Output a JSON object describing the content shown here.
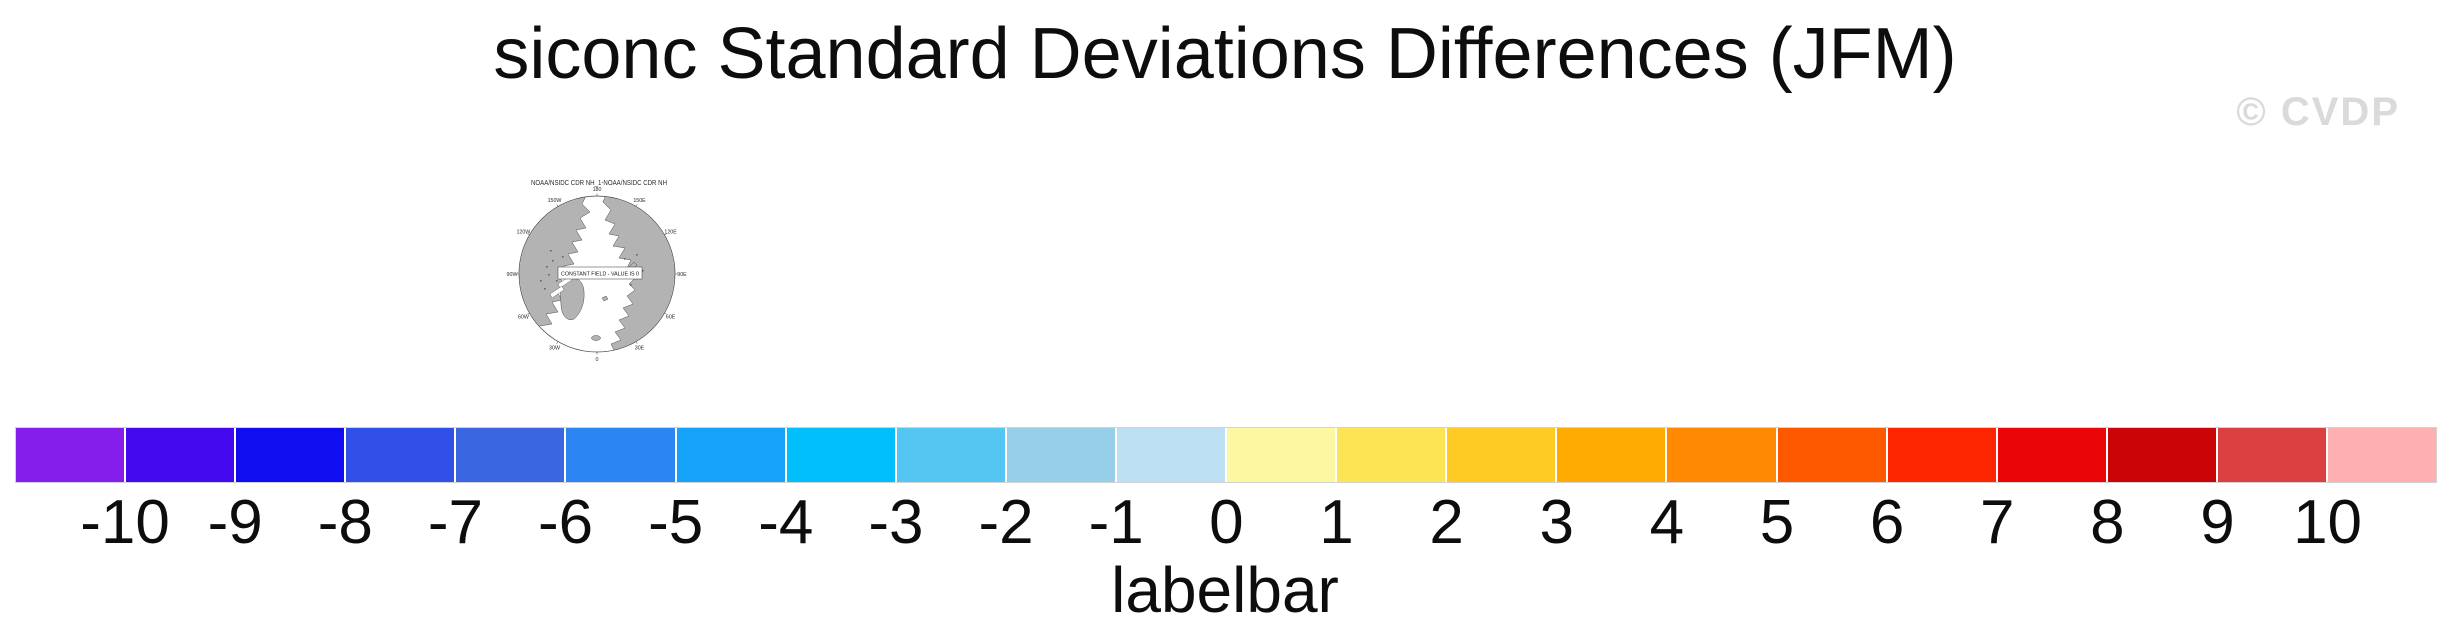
{
  "title": "siconc Standard Deviations Differences (JFM)",
  "watermark": "© CVDP",
  "map": {
    "title": "NOAA/NSIDC CDR NH_1-NOAA/NSIDC CDR NH",
    "center_note": "CONSTANT FIELD - VALUE IS 0",
    "lon_labels": [
      {
        "label": "180",
        "angle": 0
      },
      {
        "label": "150E",
        "angle": 30
      },
      {
        "label": "120E",
        "angle": 60
      },
      {
        "label": "90E",
        "angle": 90
      },
      {
        "label": "60E",
        "angle": 120
      },
      {
        "label": "30E",
        "angle": 150
      },
      {
        "label": "0",
        "angle": 180
      },
      {
        "label": "30W",
        "angle": 210
      },
      {
        "label": "60W",
        "angle": 240
      },
      {
        "label": "90W",
        "angle": 270
      },
      {
        "label": "120W",
        "angle": 300
      },
      {
        "label": "150W",
        "angle": 330
      }
    ]
  },
  "chart_data": {
    "type": "heatmap",
    "title": "siconc Standard Deviations Differences (JFM)",
    "panel_title": "NOAA/NSIDC CDR NH_1-NOAA/NSIDC CDR NH",
    "field_note": "CONSTANT FIELD - VALUE IS 0",
    "colorbar": {
      "label": "labelbar",
      "tick_labels": [
        "-10",
        "-9",
        "-8",
        "-7",
        "-6",
        "-5",
        "-4",
        "-3",
        "-2",
        "-1",
        "0",
        "1",
        "2",
        "3",
        "4",
        "5",
        "6",
        "7",
        "8",
        "9",
        "10"
      ],
      "tick_min": -10,
      "tick_max": 10,
      "tick_step": 1,
      "colors": [
        "#851EEB",
        "#4509F0",
        "#110DF1",
        "#3150E7",
        "#3A66E2",
        "#2B85F2",
        "#14A3F8",
        "#00BFFA",
        "#55C5F2",
        "#97CFE9",
        "#BCE0F2",
        "#FCF7A0",
        "#FDE455",
        "#FECB24",
        "#FFAB01",
        "#FF8900",
        "#FF5900",
        "#FE2600",
        "#E90508",
        "#CB0407",
        "#DB4040",
        "#FEAFAF"
      ]
    }
  },
  "colors": {
    "land": "#B3B3B3",
    "coast": "#4D4D4D",
    "watermark": "#DADADA",
    "background": "#FFFFFF"
  }
}
